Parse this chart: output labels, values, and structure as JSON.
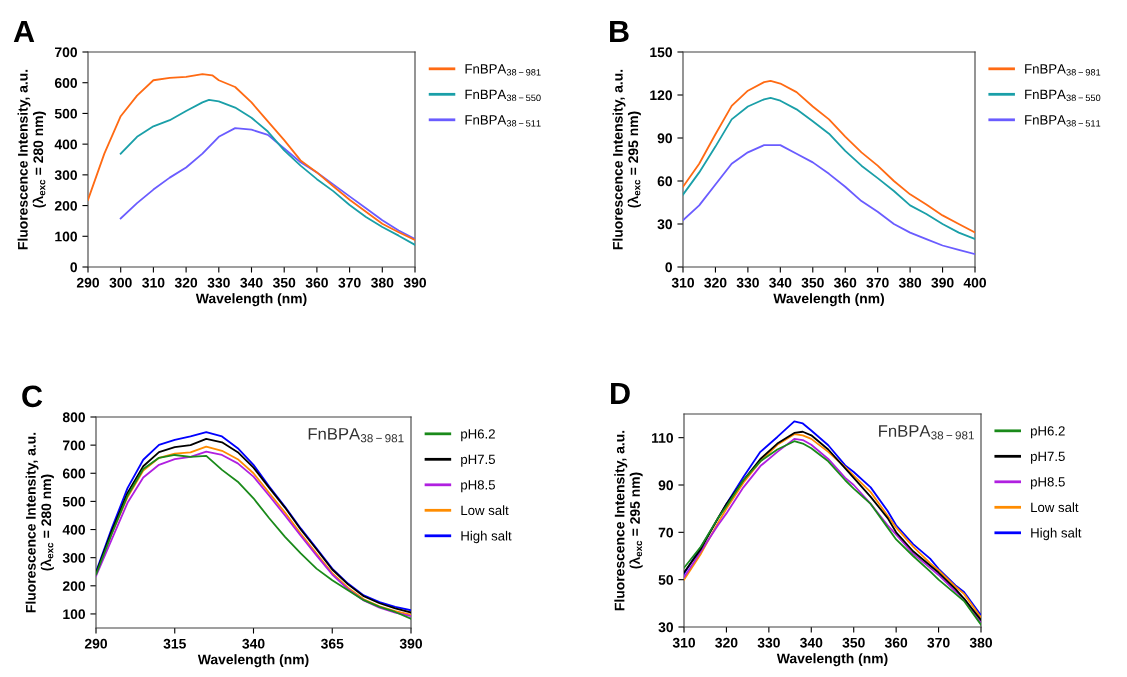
{
  "chart_data": [
    {
      "type": "line",
      "title": "A",
      "xlabel": "Wavelength (nm)",
      "ylabel": "Fluorescence Intensity, a.u.\n(λ$_{exc}$ = 280 nm)",
      "xlim": [
        290,
        390
      ],
      "ylim": [
        0,
        700
      ],
      "xticks": [
        290,
        300,
        310,
        320,
        330,
        340,
        350,
        360,
        370,
        380,
        390
      ],
      "yticks": [
        0,
        100,
        200,
        300,
        400,
        500,
        600,
        700
      ],
      "grid": false,
      "legend": "right",
      "series": [
        {
          "name": "FnBPA$_{38−981}$",
          "color": "#ff6a13",
          "x": [
            290,
            295,
            300,
            305,
            310,
            315,
            320,
            325,
            328,
            330,
            335,
            340,
            345,
            350,
            355,
            360,
            365,
            370,
            375,
            380,
            385,
            390
          ],
          "values": [
            219,
            369,
            491,
            558,
            608,
            616,
            619,
            628,
            624,
            608,
            586,
            536,
            474,
            413,
            347,
            308,
            263,
            219,
            180,
            141,
            113,
            88
          ]
        },
        {
          "name": "FnBPA$_{38−550}$",
          "color": "#1a9fa8",
          "x": [
            300,
            305,
            310,
            315,
            320,
            325,
            327,
            330,
            335,
            340,
            345,
            350,
            355,
            360,
            365,
            370,
            375,
            380,
            385,
            390
          ],
          "values": [
            369,
            424,
            458,
            478,
            508,
            536,
            544,
            539,
            519,
            486,
            441,
            380,
            330,
            286,
            247,
            202,
            163,
            130,
            102,
            72
          ]
        },
        {
          "name": "FnBPA$_{38−511}$",
          "color": "#6a5cff",
          "x": [
            300,
            305,
            310,
            315,
            320,
            325,
            330,
            335,
            340,
            345,
            350,
            355,
            360,
            365,
            370,
            375,
            380,
            385,
            390
          ],
          "values": [
            158,
            208,
            252,
            291,
            324,
            369,
            424,
            452,
            447,
            430,
            386,
            341,
            308,
            269,
            230,
            191,
            152,
            119,
            91
          ]
        }
      ]
    },
    {
      "type": "line",
      "title": "B",
      "xlabel": "Wavelength (nm)",
      "ylabel": "Fluorescence Intensity, a.u.\n(λ$_{exc}$ = 295 nm)",
      "xlim": [
        310,
        400
      ],
      "ylim": [
        0,
        150
      ],
      "xticks": [
        310,
        320,
        330,
        340,
        350,
        360,
        370,
        380,
        390,
        400
      ],
      "yticks": [
        0,
        30,
        60,
        90,
        120,
        150
      ],
      "grid": false,
      "legend": "right",
      "series": [
        {
          "name": "FnBPA$_{38−981}$",
          "color": "#ff6a13",
          "x": [
            310,
            315,
            320,
            325,
            330,
            335,
            337,
            340,
            345,
            350,
            355,
            360,
            365,
            370,
            375,
            380,
            385,
            390,
            395,
            400
          ],
          "values": [
            56,
            72,
            92.6,
            112.4,
            123,
            129,
            129.8,
            128,
            122,
            112,
            103,
            91,
            80,
            70.7,
            60,
            50.7,
            43.6,
            36,
            30,
            24
          ]
        },
        {
          "name": "FnBPA$_{38−550}$",
          "color": "#1a9fa8",
          "x": [
            310,
            315,
            320,
            325,
            330,
            335,
            337,
            340,
            345,
            350,
            355,
            360,
            365,
            370,
            375,
            380,
            385,
            390,
            395,
            400
          ],
          "values": [
            50.5,
            66,
            84,
            103,
            112,
            117,
            118,
            116,
            110,
            101.7,
            93,
            81,
            70.7,
            62,
            53,
            43,
            37,
            30,
            24,
            19.5
          ]
        },
        {
          "name": "FnBPA$_{38−511}$",
          "color": "#6a5cff",
          "x": [
            310,
            315,
            320,
            325,
            330,
            335,
            340,
            345,
            350,
            355,
            360,
            365,
            370,
            375,
            380,
            385,
            390,
            395,
            400
          ],
          "values": [
            32.6,
            43,
            57.6,
            72,
            80,
            85,
            85,
            79,
            73,
            65,
            56,
            46,
            38.6,
            30,
            24,
            19.5,
            15,
            12,
            9
          ]
        }
      ]
    },
    {
      "type": "line",
      "title": "C",
      "xlabel": "Wavelength (nm)",
      "ylabel": "Fluorescence Intensity, a.u.\n(λ$_{exc}$ = 280 nm)",
      "xlim": [
        290,
        390
      ],
      "ylim": [
        50,
        800
      ],
      "xticks": [
        290,
        315,
        340,
        365,
        390
      ],
      "yticks": [
        100,
        200,
        300,
        400,
        500,
        600,
        700,
        800
      ],
      "grid": false,
      "legend": "right",
      "annotations": [
        "FnBPA$_{38−981}$"
      ],
      "x": [
        290,
        295,
        300,
        305,
        310,
        315,
        320,
        325,
        330,
        335,
        340,
        345,
        350,
        355,
        360,
        365,
        370,
        375,
        380,
        385,
        390
      ],
      "series": [
        {
          "name": "pH6.2",
          "color": "#1a8a1a",
          "values": [
            240,
            385,
            520,
            615,
            655,
            665,
            658,
            662,
            612,
            570,
            511,
            440,
            374,
            315,
            261,
            220,
            184,
            149,
            125,
            107,
            83
          ]
        },
        {
          "name": "pH7.5",
          "color": "#000000",
          "values": [
            245,
            395,
            530,
            625,
            675,
            693,
            700,
            722,
            710,
            675,
            620,
            548,
            478,
            400,
            330,
            258,
            205,
            163,
            138,
            120,
            105
          ]
        },
        {
          "name": "pH8.5",
          "color": "#b020e0",
          "values": [
            235,
            365,
            495,
            585,
            630,
            650,
            658,
            677,
            665,
            635,
            588,
            520,
            450,
            378,
            308,
            240,
            188,
            148,
            122,
            105,
            92
          ]
        },
        {
          "name": "Low salt",
          "color": "#ff8c00",
          "values": [
            240,
            385,
            515,
            610,
            655,
            670,
            674,
            695,
            680,
            650,
            600,
            530,
            460,
            385,
            315,
            245,
            193,
            152,
            127,
            110,
            97
          ]
        },
        {
          "name": "High salt",
          "color": "#0000ff",
          "values": [
            249,
            404,
            547,
            648,
            701,
            719,
            731,
            746,
            731,
            689,
            630,
            553,
            481,
            404,
            333,
            261,
            208,
            166,
            142,
            125,
            113
          ]
        }
      ]
    },
    {
      "type": "line",
      "title": "D",
      "xlabel": "Wavelength (nm)",
      "ylabel": "Fluorescence Intensity, a.u.\n(λ$_{exc}$ = 295 nm)",
      "xlim": [
        310,
        380
      ],
      "ylim": [
        30,
        120
      ],
      "xticks": [
        310,
        320,
        330,
        340,
        350,
        360,
        370,
        380
      ],
      "yticks": [
        30,
        50,
        70,
        90,
        110
      ],
      "grid": false,
      "legend": "right",
      "annotations": [
        "FnBPA$_{38−981}$"
      ],
      "x": [
        310,
        314,
        318,
        320,
        324,
        328,
        332,
        336,
        338,
        340,
        344,
        348,
        350,
        354,
        358,
        360,
        364,
        368,
        370,
        374,
        376,
        380
      ],
      "series": [
        {
          "name": "pH6.2",
          "color": "#1a8a1a",
          "values": [
            55,
            64,
            76,
            81,
            92,
            100,
            105,
            108.5,
            107.5,
            105.5,
            100,
            92,
            88.5,
            82,
            72,
            67,
            60,
            53.5,
            50,
            44,
            41,
            31
          ]
        },
        {
          "name": "pH7.5",
          "color": "#000000",
          "values": [
            53,
            63,
            76,
            82,
            92,
            101,
            107.5,
            112,
            112.5,
            111,
            105,
            97,
            93,
            85,
            76,
            70,
            62,
            56,
            53,
            46,
            42,
            33
          ]
        },
        {
          "name": "pH8.5",
          "color": "#b020e0",
          "values": [
            51,
            62,
            73,
            78,
            89,
            98,
            104,
            109.5,
            109,
            107,
            101,
            93,
            90,
            82,
            73,
            69,
            61,
            55,
            52,
            45,
            42,
            32
          ]
        },
        {
          "name": "Low salt",
          "color": "#ff8c00",
          "values": [
            50,
            61,
            74,
            80,
            91,
            100,
            107,
            111.5,
            111,
            109.5,
            104,
            97.5,
            94,
            87,
            77,
            72,
            64,
            57,
            54,
            47,
            44,
            34
          ]
        },
        {
          "name": "High salt",
          "color": "#0000ff",
          "values": [
            52.5,
            63.8,
            75.8,
            82,
            93.4,
            104,
            110.3,
            116.9,
            116,
            113,
            106.8,
            98.3,
            95.5,
            89,
            79,
            73,
            65,
            58.9,
            54.6,
            47.6,
            44.8,
            35
          ]
        }
      ]
    }
  ]
}
